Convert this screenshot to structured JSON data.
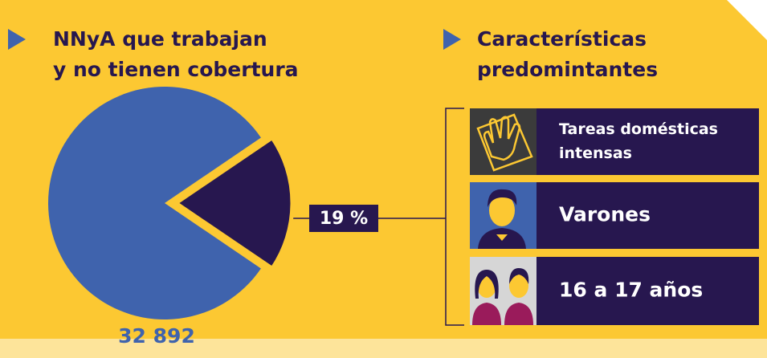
{
  "chart_data": {
    "type": "pie",
    "title_lines": [
      "NNyA que trabajan",
      "y no tienen cobertura"
    ],
    "values": [
      81,
      19
    ],
    "value_labels": [
      null,
      "19 %"
    ],
    "colors": [
      "#3f63ad",
      "#27174f"
    ],
    "annotation": "32 892"
  },
  "panel": {
    "heading_lines": [
      "Características",
      "predomintantes"
    ],
    "items": [
      {
        "label_lines": [
          "Tareas domésticas",
          "intensas"
        ]
      },
      {
        "label_lines": [
          "Varones"
        ]
      },
      {
        "label_lines": [
          "16 a 17 años"
        ]
      }
    ]
  }
}
